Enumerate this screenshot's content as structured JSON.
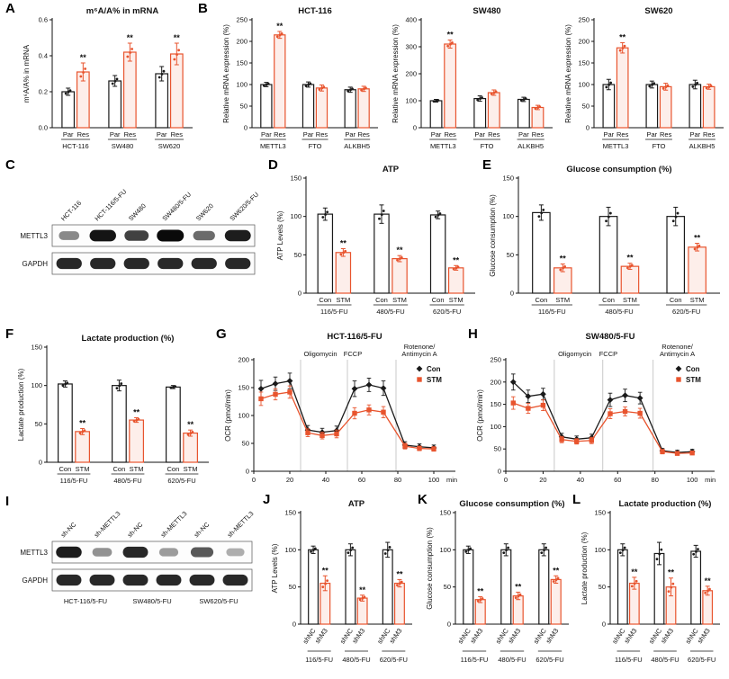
{
  "panel_letters": {
    "A": "A",
    "B": "B",
    "C": "C",
    "D": "D",
    "E": "E",
    "F": "F",
    "G": "G",
    "H": "H",
    "I": "I",
    "J": "J",
    "K": "K",
    "L": "L"
  },
  "colors": {
    "black": "#1a1a1a",
    "red": "#e8542e",
    "vline_gray": "#c8c8c8"
  },
  "chart_data": [
    {
      "id": "A",
      "type": "bar",
      "title": "m⁶A/A% in mRNA",
      "ylabel": "m⁶A/A% in mRNA",
      "ylim": [
        0,
        0.6
      ],
      "yticks": [
        0,
        0.2,
        0.4,
        0.6
      ],
      "tick_decimals": 1,
      "groups": [
        "HCT-116",
        "SW480",
        "SW620"
      ],
      "pair_labels": [
        "Par",
        "Res"
      ],
      "series": [
        {
          "name": "Par",
          "color": "#1a1a1a",
          "values": [
            0.2,
            0.26,
            0.3
          ],
          "errors": [
            0.02,
            0.03,
            0.04
          ]
        },
        {
          "name": "Res",
          "color": "#e8542e",
          "values": [
            0.31,
            0.42,
            0.41
          ],
          "errors": [
            0.05,
            0.05,
            0.06
          ],
          "sig": [
            "**",
            "**",
            "**"
          ]
        }
      ]
    },
    {
      "id": "B1",
      "type": "bar",
      "title": "HCT-116",
      "ylabel": "Relative mRNA expression (%)",
      "ylim": [
        0,
        250
      ],
      "yticks": [
        0,
        50,
        100,
        150,
        200,
        250
      ],
      "groups": [
        "METTL3",
        "FTO",
        "ALKBH5"
      ],
      "pair_labels": [
        "Par",
        "Res"
      ],
      "series": [
        {
          "name": "Par",
          "color": "#1a1a1a",
          "values": [
            100,
            100,
            88
          ],
          "errors": [
            5,
            6,
            6
          ]
        },
        {
          "name": "Res",
          "color": "#e8542e",
          "values": [
            215,
            92,
            90
          ],
          "errors": [
            8,
            7,
            6
          ],
          "sig": [
            "**",
            "",
            ""
          ]
        }
      ]
    },
    {
      "id": "B2",
      "type": "bar",
      "title": "SW480",
      "ylabel": "Relative mRNA expression (%)",
      "ylim": [
        0,
        400
      ],
      "yticks": [
        0,
        100,
        200,
        300,
        400
      ],
      "groups": [
        "METTL3",
        "FTO",
        "ALKBH5"
      ],
      "pair_labels": [
        "Par",
        "Res"
      ],
      "series": [
        {
          "name": "Par",
          "color": "#1a1a1a",
          "values": [
            100,
            108,
            105
          ],
          "errors": [
            5,
            10,
            8
          ]
        },
        {
          "name": "Res",
          "color": "#e8542e",
          "values": [
            310,
            130,
            75
          ],
          "errors": [
            15,
            10,
            8
          ],
          "sig": [
            "**",
            "",
            ""
          ]
        }
      ]
    },
    {
      "id": "B3",
      "type": "bar",
      "title": "SW620",
      "ylabel": "Relative mRNA expression (%)",
      "ylim": [
        0,
        250
      ],
      "yticks": [
        0,
        50,
        100,
        150,
        200,
        250
      ],
      "groups": [
        "METTL3",
        "FTO",
        "ALKBH5"
      ],
      "pair_labels": [
        "Par",
        "Res"
      ],
      "series": [
        {
          "name": "Par",
          "color": "#1a1a1a",
          "values": [
            100,
            100,
            100
          ],
          "errors": [
            12,
            8,
            10
          ]
        },
        {
          "name": "Res",
          "color": "#e8542e",
          "values": [
            185,
            95,
            95
          ],
          "errors": [
            12,
            8,
            6
          ],
          "sig": [
            "**",
            "",
            ""
          ]
        }
      ]
    },
    {
      "id": "C",
      "type": "blot",
      "label_h": 64,
      "lane_labels": [
        "HCT-116",
        "HCT-116/5-FU",
        "SW480",
        "SW480/5-FU",
        "SW620",
        "SW620/5-FU"
      ],
      "rows": [
        {
          "label": "METTL3",
          "bands": [
            0.35,
            0.95,
            0.72,
            1.0,
            0.5,
            0.9
          ]
        },
        {
          "label": "GAPDH",
          "bands": [
            0.85,
            0.85,
            0.85,
            0.85,
            0.85,
            0.85
          ]
        }
      ]
    },
    {
      "id": "D",
      "type": "bar",
      "title": "ATP",
      "ylabel": "ATP Levels (%)",
      "ylim": [
        0,
        150
      ],
      "yticks": [
        0,
        50,
        100,
        150
      ],
      "groups": [
        "116/5-FU",
        "480/5-FU",
        "620/5-FU"
      ],
      "pair_labels": [
        "Con",
        "STM"
      ],
      "series": [
        {
          "name": "Con",
          "color": "#1a1a1a",
          "values": [
            103,
            103,
            102
          ],
          "errors": [
            8,
            12,
            5
          ]
        },
        {
          "name": "STM",
          "color": "#e8542e",
          "values": [
            53,
            45,
            33
          ],
          "errors": [
            5,
            4,
            3
          ],
          "sig": [
            "**",
            "**",
            "**"
          ]
        }
      ]
    },
    {
      "id": "E",
      "type": "bar",
      "title": "Glucose consumption (%)",
      "ylabel": "Glucose consumption (%)",
      "ylim": [
        0,
        150
      ],
      "yticks": [
        0,
        50,
        100,
        150
      ],
      "groups": [
        "116/5-FU",
        "480/5-FU",
        "620/5-FU"
      ],
      "pair_labels": [
        "Con",
        "STM"
      ],
      "series": [
        {
          "name": "Con",
          "color": "#1a1a1a",
          "values": [
            105,
            100,
            100
          ],
          "errors": [
            10,
            12,
            12
          ]
        },
        {
          "name": "STM",
          "color": "#e8542e",
          "values": [
            33,
            35,
            60
          ],
          "errors": [
            5,
            4,
            5
          ],
          "sig": [
            "**",
            "**",
            "**"
          ]
        }
      ]
    },
    {
      "id": "F",
      "type": "bar",
      "title": "Lactate production (%)",
      "ylabel": "Lactate production (%)",
      "ylim": [
        0,
        150
      ],
      "yticks": [
        0,
        50,
        100,
        150
      ],
      "groups": [
        "116/5-FU",
        "480/5-FU",
        "620/5-FU"
      ],
      "pair_labels": [
        "Con",
        "STM"
      ],
      "series": [
        {
          "name": "Con",
          "color": "#1a1a1a",
          "values": [
            102,
            100,
            98
          ],
          "errors": [
            4,
            7,
            2
          ]
        },
        {
          "name": "STM",
          "color": "#e8542e",
          "values": [
            40,
            55,
            38
          ],
          "errors": [
            4,
            3,
            4
          ],
          "sig": [
            "**",
            "**",
            "**"
          ]
        }
      ]
    },
    {
      "id": "G",
      "type": "line",
      "title": "HCT-116/5-FU",
      "ylabel": "OCR (pmol/min)",
      "xlabel": "min",
      "xlim": [
        0,
        112
      ],
      "xticks": [
        0,
        20,
        40,
        60,
        80,
        100
      ],
      "ylim": [
        0,
        200
      ],
      "yticks": [
        0,
        50,
        100,
        150,
        200
      ],
      "vlines": [
        26,
        52,
        79
      ],
      "phases": [
        {
          "x": 37,
          "lines": [
            "Oligomycin"
          ]
        },
        {
          "x": 55,
          "lines": [
            "FCCP"
          ]
        },
        {
          "x": 92,
          "lines": [
            "Rotenone/",
            "Antimycin A"
          ]
        }
      ],
      "x": [
        4,
        12,
        20,
        30,
        38,
        46,
        56,
        64,
        72,
        84,
        92,
        100
      ],
      "series": [
        {
          "name": "Con",
          "marker": "diamond",
          "color": "#1a1a1a",
          "values": [
            148,
            157,
            162,
            74,
            70,
            73,
            148,
            155,
            149,
            47,
            44,
            42
          ],
          "errors": [
            15,
            12,
            14,
            8,
            7,
            8,
            14,
            12,
            13,
            6,
            5,
            5
          ]
        },
        {
          "name": "STM",
          "marker": "square",
          "color": "#e8542e",
          "values": [
            130,
            138,
            142,
            69,
            64,
            67,
            104,
            110,
            106,
            45,
            41,
            40
          ],
          "errors": [
            12,
            10,
            11,
            7,
            6,
            7,
            10,
            9,
            10,
            5,
            4,
            4
          ]
        }
      ]
    },
    {
      "id": "H",
      "type": "line",
      "title": "SW480/5-FU",
      "ylabel": "OCR (pmol/min)",
      "xlabel": "min",
      "xlim": [
        0,
        112
      ],
      "xticks": [
        0,
        20,
        40,
        60,
        80,
        100
      ],
      "ylim": [
        0,
        250
      ],
      "yticks": [
        0,
        50,
        100,
        150,
        200,
        250
      ],
      "vlines": [
        26,
        52,
        79
      ],
      "phases": [
        {
          "x": 37,
          "lines": [
            "Oligomycin"
          ]
        },
        {
          "x": 55,
          "lines": [
            "FCCP"
          ]
        },
        {
          "x": 92,
          "lines": [
            "Rotenone/",
            "Antimycin A"
          ]
        }
      ],
      "x": [
        4,
        12,
        20,
        30,
        38,
        46,
        56,
        64,
        72,
        84,
        92,
        100
      ],
      "series": [
        {
          "name": "Con",
          "marker": "diamond",
          "color": "#1a1a1a",
          "values": [
            200,
            168,
            173,
            77,
            72,
            75,
            160,
            170,
            164,
            46,
            42,
            44
          ],
          "errors": [
            18,
            14,
            13,
            8,
            7,
            8,
            15,
            14,
            13,
            5,
            5,
            5
          ]
        },
        {
          "name": "STM",
          "marker": "square",
          "color": "#e8542e",
          "values": [
            153,
            141,
            148,
            71,
            67,
            69,
            129,
            134,
            130,
            44,
            40,
            41
          ],
          "errors": [
            14,
            11,
            12,
            7,
            6,
            7,
            11,
            10,
            11,
            5,
            4,
            4
          ]
        }
      ]
    },
    {
      "id": "I",
      "type": "blot",
      "label_h": 46,
      "lane_labels": [
        "sh-NC",
        "sh-METTL3",
        "sh-NC",
        "sh-METTL3",
        "sh-NC",
        "sh-METTL3"
      ],
      "rows": [
        {
          "label": "METTL3",
          "bands": [
            0.9,
            0.3,
            0.85,
            0.25,
            0.6,
            0.15
          ]
        },
        {
          "label": "GAPDH",
          "bands": [
            0.85,
            0.85,
            0.85,
            0.85,
            0.85,
            0.85
          ]
        }
      ],
      "groups": [
        "HCT-116/5-FU",
        "SW480/5-FU",
        "SW620/5-FU"
      ]
    },
    {
      "id": "J",
      "type": "bar",
      "title": "ATP",
      "ylabel": "ATP Levels (%)",
      "rotate_labels": true,
      "ylim": [
        0,
        150
      ],
      "yticks": [
        0,
        50,
        100,
        150
      ],
      "groups": [
        "116/5-FU",
        "480/5-FU",
        "620/5-FU"
      ],
      "pair_labels": [
        "shNC",
        "shM3"
      ],
      "series": [
        {
          "name": "shNC",
          "color": "#1a1a1a",
          "values": [
            100,
            100,
            100
          ],
          "errors": [
            5,
            8,
            10
          ]
        },
        {
          "name": "shM3",
          "color": "#e8542e",
          "values": [
            55,
            35,
            55
          ],
          "errors": [
            10,
            4,
            5
          ],
          "sig": [
            "**",
            "**",
            "**"
          ]
        }
      ]
    },
    {
      "id": "K",
      "type": "bar",
      "title": "Glucose consumption (%)",
      "ylabel": "Glucose consumption (%)",
      "rotate_labels": true,
      "ylim": [
        0,
        150
      ],
      "yticks": [
        0,
        50,
        100,
        150
      ],
      "groups": [
        "116/5-FU",
        "480/5-FU",
        "620/5-FU"
      ],
      "pair_labels": [
        "shNC",
        "shM3"
      ],
      "series": [
        {
          "name": "shNC",
          "color": "#1a1a1a",
          "values": [
            100,
            100,
            100
          ],
          "errors": [
            5,
            8,
            8
          ]
        },
        {
          "name": "shM3",
          "color": "#e8542e",
          "values": [
            33,
            38,
            60
          ],
          "errors": [
            4,
            5,
            5
          ],
          "sig": [
            "**",
            "**",
            "**"
          ]
        }
      ]
    },
    {
      "id": "L",
      "type": "bar",
      "title": "Lactate production (%)",
      "ylabel": "Lactate production (%)",
      "rotate_labels": true,
      "ylim": [
        0,
        150
      ],
      "yticks": [
        0,
        50,
        100,
        150
      ],
      "groups": [
        "116/5-FU",
        "480/5-FU",
        "620/5-FU"
      ],
      "pair_labels": [
        "shNC",
        "shM3"
      ],
      "series": [
        {
          "name": "shNC",
          "color": "#1a1a1a",
          "values": [
            100,
            95,
            98
          ],
          "errors": [
            8,
            15,
            8
          ]
        },
        {
          "name": "shM3",
          "color": "#e8542e",
          "values": [
            55,
            50,
            45
          ],
          "errors": [
            8,
            12,
            6
          ],
          "sig": [
            "**",
            "**",
            "**"
          ]
        }
      ]
    }
  ]
}
